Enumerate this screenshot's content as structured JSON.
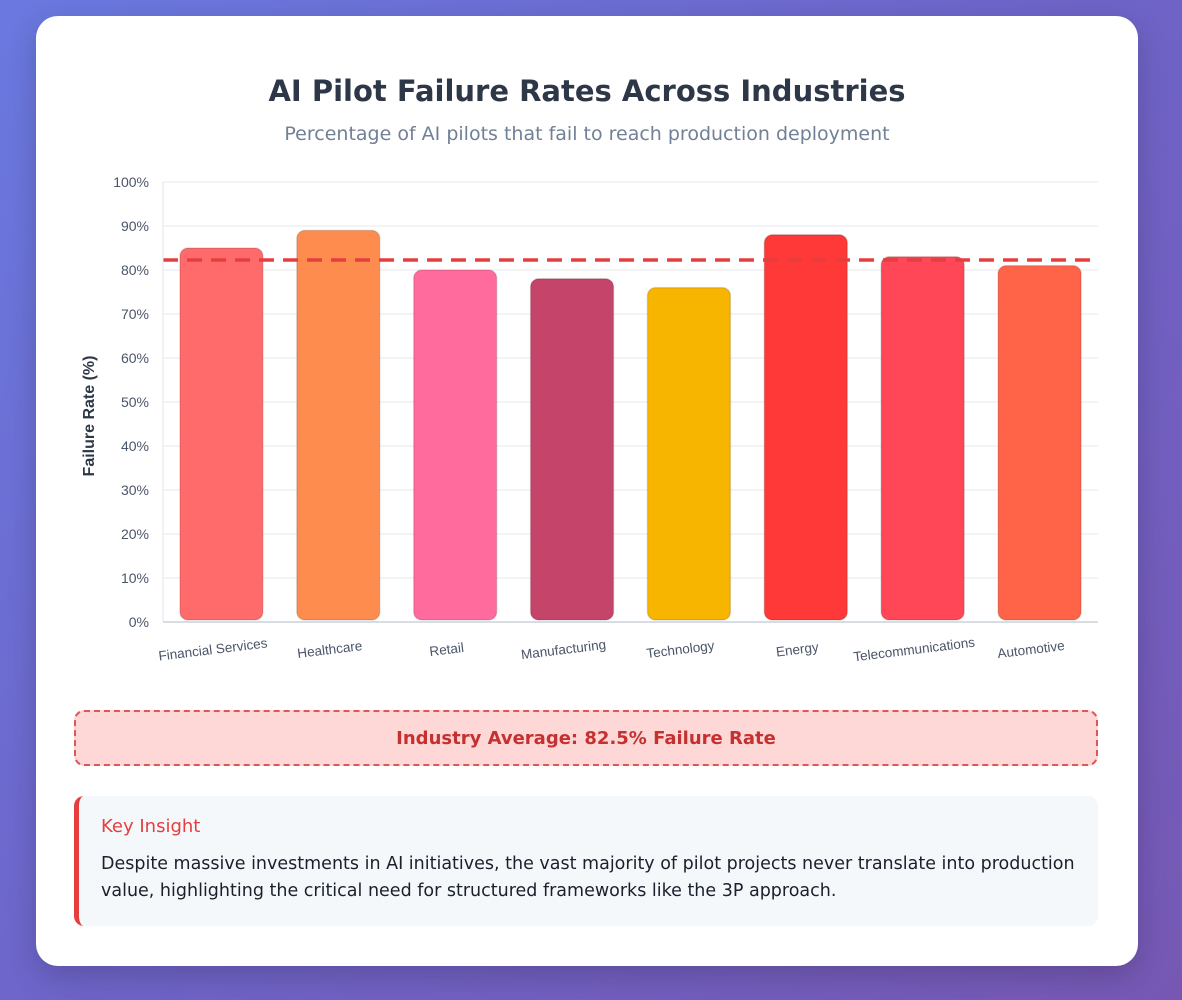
{
  "colors": {
    "accent": "#e53e3e",
    "avg_line": "#e53e3e",
    "bars": [
      "#ff6b6b",
      "#ff8c4f",
      "#ff6b9d",
      "#c44569",
      "#f8b500",
      "#ff3838",
      "#ff4757",
      "#ff6348"
    ]
  },
  "chart_data": {
    "type": "bar",
    "title": "AI Pilot Failure Rates Across Industries",
    "subtitle": "Percentage of AI pilots that fail to reach production deployment",
    "ylabel": "Failure Rate (%)",
    "xlabel": "",
    "ylim": [
      0,
      100
    ],
    "y_ticks": [
      "0%",
      "10%",
      "20%",
      "30%",
      "40%",
      "50%",
      "60%",
      "70%",
      "80%",
      "90%",
      "100%"
    ],
    "categories": [
      "Financial Services",
      "Healthcare",
      "Retail",
      "Manufacturing",
      "Technology",
      "Energy",
      "Telecommunications",
      "Automotive"
    ],
    "values": [
      85,
      89,
      80,
      78,
      76,
      88,
      83,
      81
    ],
    "average": 82.5,
    "grid": true
  },
  "average_box": {
    "text": "Industry Average: 82.5% Failure Rate"
  },
  "insight": {
    "title": "Key Insight",
    "text": "Despite massive investments in AI initiatives, the vast majority of pilot projects never translate into production value, highlighting the critical need for structured frameworks like the 3P approach."
  }
}
